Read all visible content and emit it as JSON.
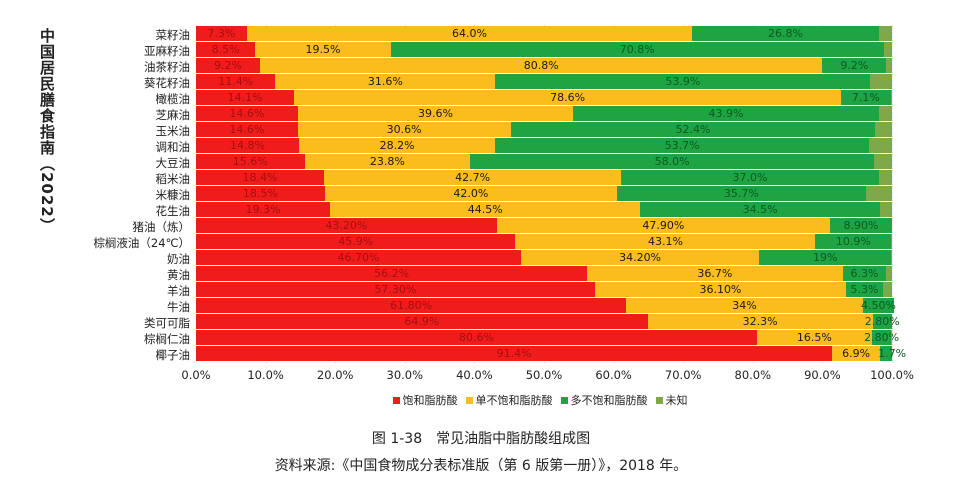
{
  "side_title": "中国居民膳食指南（2022）",
  "caption": "图 1-38　常见油脂中脂肪酸组成图",
  "source": "资料来源:《中国食物成分表标准版（第 6 版第一册）》，2018 年。",
  "chart_data": {
    "type": "bar",
    "orientation": "horizontal",
    "stacked": true,
    "xlim": [
      0,
      100
    ],
    "x_ticks": [
      "0.0%",
      "10.0%",
      "20.0%",
      "30.0%",
      "40.0%",
      "50.0%",
      "60.0%",
      "70.0%",
      "80.0%",
      "90.0%",
      "100.0%"
    ],
    "legend_position": "bottom",
    "series": [
      {
        "name": "饱和脂肪酸",
        "color": "#f01c1c",
        "label_color": "#a31010"
      },
      {
        "name": "单不饱和脂肪酸",
        "color": "#fbbd1b",
        "label_color": "#1a1a1a"
      },
      {
        "name": "多不饱和脂肪酸",
        "color": "#1ea443",
        "label_color": "#0d5a22"
      },
      {
        "name": "未知",
        "color": "#7fa84a",
        "label_color": "#333"
      }
    ],
    "rows": [
      {
        "category": "菜籽油",
        "values": [
          7.3,
          64.0,
          26.8
        ],
        "labels": [
          "7.3%",
          "64.0%",
          "26.8%"
        ]
      },
      {
        "category": "亚麻籽油",
        "values": [
          8.5,
          19.5,
          70.8
        ],
        "labels": [
          "8.5%",
          "19.5%",
          "70.8%"
        ]
      },
      {
        "category": "油茶籽油",
        "values": [
          9.2,
          80.8,
          9.2
        ],
        "labels": [
          "9.2%",
          "80.8%",
          "9.2%"
        ]
      },
      {
        "category": "葵花籽油",
        "values": [
          11.4,
          31.6,
          53.9
        ],
        "labels": [
          "11.4%",
          "31.6%",
          "53.9%"
        ]
      },
      {
        "category": "橄榄油",
        "values": [
          14.1,
          78.6,
          7.1
        ],
        "labels": [
          "14.1%",
          "78.6%",
          "7.1%"
        ]
      },
      {
        "category": "芝麻油",
        "values": [
          14.6,
          39.6,
          43.9
        ],
        "labels": [
          "14.6%",
          "39.6%",
          "43.9%"
        ]
      },
      {
        "category": "玉米油",
        "values": [
          14.6,
          30.6,
          52.4
        ],
        "labels": [
          "14.6%",
          "30.6%",
          "52.4%"
        ]
      },
      {
        "category": "调和油",
        "values": [
          14.8,
          28.2,
          53.7
        ],
        "labels": [
          "14.8%",
          "28.2%",
          "53.7%"
        ]
      },
      {
        "category": "大豆油",
        "values": [
          15.6,
          23.8,
          58.0
        ],
        "labels": [
          "15.6%",
          "23.8%",
          "58.0%"
        ]
      },
      {
        "category": "稻米油",
        "values": [
          18.4,
          42.7,
          37.0
        ],
        "labels": [
          "18.4%",
          "42.7%",
          "37.0%"
        ]
      },
      {
        "category": "米糠油",
        "values": [
          18.5,
          42.0,
          35.7
        ],
        "labels": [
          "18.5%",
          "42.0%",
          "35.7%"
        ]
      },
      {
        "category": "花生油",
        "values": [
          19.3,
          44.5,
          34.5
        ],
        "labels": [
          "19.3%",
          "44.5%",
          "34.5%"
        ]
      },
      {
        "category": "猪油（炼）",
        "values": [
          43.2,
          47.9,
          8.9
        ],
        "labels": [
          "43.20%",
          "47.90%",
          "8.90%"
        ]
      },
      {
        "category": "棕榈液油（24℃）",
        "values": [
          45.9,
          43.1,
          10.9
        ],
        "labels": [
          "45.9%",
          "43.1%",
          "10.9%"
        ]
      },
      {
        "category": "奶油",
        "values": [
          46.7,
          34.2,
          19
        ],
        "labels": [
          "46.70%",
          "34.20%",
          "19%"
        ]
      },
      {
        "category": "黄油",
        "values": [
          56.2,
          36.7,
          6.3
        ],
        "labels": [
          "56.2%",
          "36.7%",
          "6.3%"
        ]
      },
      {
        "category": "羊油",
        "values": [
          57.3,
          36.1,
          5.3
        ],
        "labels": [
          "57.30%",
          "36.10%",
          "5.3%"
        ]
      },
      {
        "category": "牛油",
        "values": [
          61.8,
          34,
          4.5
        ],
        "labels": [
          "61.80%",
          "34%",
          "4.50%"
        ]
      },
      {
        "category": "类可可脂",
        "values": [
          64.9,
          32.3,
          2.8
        ],
        "labels": [
          "64.9%",
          "32.3%",
          "2.80%"
        ]
      },
      {
        "category": "棕榈仁油",
        "values": [
          80.6,
          16.5,
          2.8
        ],
        "labels": [
          "80.6%",
          "16.5%",
          "2.80%"
        ]
      },
      {
        "category": "椰子油",
        "values": [
          91.4,
          6.9,
          1.7
        ],
        "labels": [
          "91.4%",
          "6.9%",
          "1.7%"
        ]
      }
    ]
  }
}
